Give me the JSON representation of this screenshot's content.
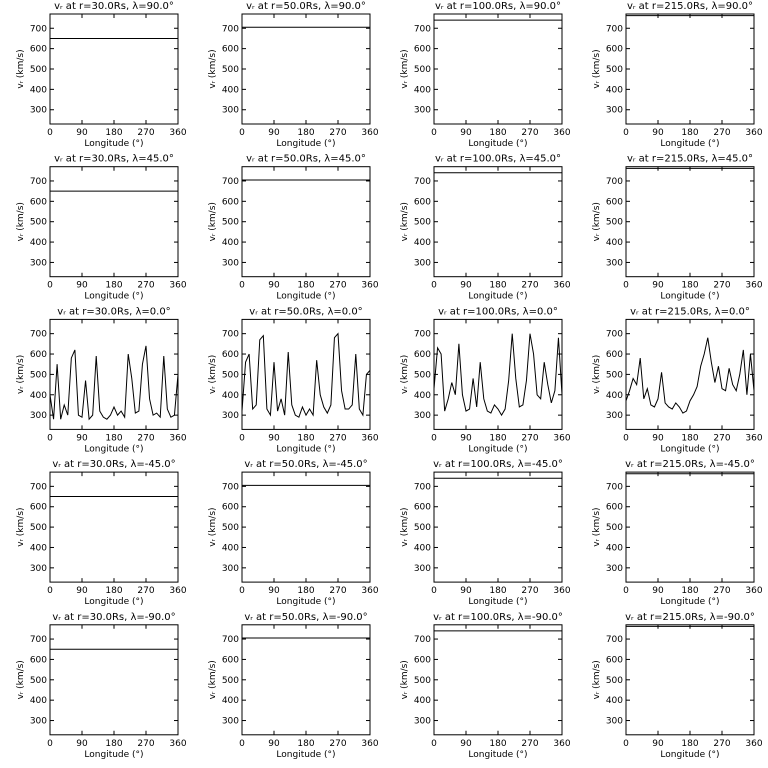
{
  "chart_data": [
    {
      "type": "line",
      "title": "vᵣ at r=30.0Rs, λ=90.0°",
      "xlabel": "Longitude (°)",
      "ylabel": "vᵣ (km/s)",
      "xlim": [
        0,
        360
      ],
      "xticks": [
        0,
        90,
        180,
        270,
        360
      ],
      "ylim": [
        230,
        770
      ],
      "yticks": [
        300,
        400,
        500,
        600,
        700
      ],
      "color": "#000000",
      "x": [
        0,
        360
      ],
      "values": [
        650,
        650
      ]
    },
    {
      "type": "line",
      "title": "vᵣ at r=50.0Rs, λ=90.0°",
      "xlabel": "Longitude (°)",
      "ylabel": "vᵣ (km/s)",
      "xlim": [
        0,
        360
      ],
      "xticks": [
        0,
        90,
        180,
        270,
        360
      ],
      "ylim": [
        230,
        770
      ],
      "yticks": [
        300,
        400,
        500,
        600,
        700
      ],
      "color": "#000000",
      "x": [
        0,
        360
      ],
      "values": [
        705,
        705
      ]
    },
    {
      "type": "line",
      "title": "vᵣ at r=100.0Rs, λ=90.0°",
      "xlabel": "Longitude (°)",
      "ylabel": "vᵣ (km/s)",
      "xlim": [
        0,
        360
      ],
      "xticks": [
        0,
        90,
        180,
        270,
        360
      ],
      "ylim": [
        230,
        770
      ],
      "yticks": [
        300,
        400,
        500,
        600,
        700
      ],
      "color": "#000000",
      "x": [
        0,
        360
      ],
      "values": [
        740,
        740
      ]
    },
    {
      "type": "line",
      "title": "vᵣ at r=215.0Rs, λ=90.0°",
      "xlabel": "Longitude (°)",
      "ylabel": "vᵣ (km/s)",
      "xlim": [
        0,
        360
      ],
      "xticks": [
        0,
        90,
        180,
        270,
        360
      ],
      "ylim": [
        230,
        770
      ],
      "yticks": [
        300,
        400,
        500,
        600,
        700
      ],
      "color": "#000000",
      "x": [
        0,
        360
      ],
      "values": [
        762,
        762
      ]
    },
    {
      "type": "line",
      "title": "vᵣ at r=30.0Rs, λ=45.0°",
      "xlabel": "Longitude (°)",
      "ylabel": "vᵣ (km/s)",
      "xlim": [
        0,
        360
      ],
      "xticks": [
        0,
        90,
        180,
        270,
        360
      ],
      "ylim": [
        230,
        770
      ],
      "yticks": [
        300,
        400,
        500,
        600,
        700
      ],
      "color": "#000000",
      "x": [
        0,
        360
      ],
      "values": [
        650,
        650
      ]
    },
    {
      "type": "line",
      "title": "vᵣ at r=50.0Rs, λ=45.0°",
      "xlabel": "Longitude (°)",
      "ylabel": "vᵣ (km/s)",
      "xlim": [
        0,
        360
      ],
      "xticks": [
        0,
        90,
        180,
        270,
        360
      ],
      "ylim": [
        230,
        770
      ],
      "yticks": [
        300,
        400,
        500,
        600,
        700
      ],
      "color": "#000000",
      "x": [
        0,
        360
      ],
      "values": [
        705,
        705
      ]
    },
    {
      "type": "line",
      "title": "vᵣ at r=100.0Rs, λ=45.0°",
      "xlabel": "Longitude (°)",
      "ylabel": "vᵣ (km/s)",
      "xlim": [
        0,
        360
      ],
      "xticks": [
        0,
        90,
        180,
        270,
        360
      ],
      "ylim": [
        230,
        770
      ],
      "yticks": [
        300,
        400,
        500,
        600,
        700
      ],
      "color": "#000000",
      "x": [
        0,
        360
      ],
      "values": [
        740,
        740
      ]
    },
    {
      "type": "line",
      "title": "vᵣ at r=215.0Rs, λ=45.0°",
      "xlabel": "Longitude (°)",
      "ylabel": "vᵣ (km/s)",
      "xlim": [
        0,
        360
      ],
      "xticks": [
        0,
        90,
        180,
        270,
        360
      ],
      "ylim": [
        230,
        770
      ],
      "yticks": [
        300,
        400,
        500,
        600,
        700
      ],
      "color": "#000000",
      "x": [
        0,
        360
      ],
      "values": [
        762,
        762
      ]
    },
    {
      "type": "line",
      "title": "vᵣ at r=30.0Rs, λ=0.0°",
      "xlabel": "Longitude (°)",
      "ylabel": "vᵣ (km/s)",
      "xlim": [
        0,
        360
      ],
      "xticks": [
        0,
        90,
        180,
        270,
        360
      ],
      "ylim": [
        230,
        770
      ],
      "yticks": [
        300,
        400,
        500,
        600,
        700
      ],
      "color": "#000000",
      "x": [
        0,
        10,
        20,
        30,
        40,
        50,
        60,
        70,
        80,
        90,
        100,
        110,
        120,
        130,
        140,
        150,
        160,
        170,
        180,
        190,
        200,
        210,
        220,
        230,
        240,
        250,
        260,
        270,
        280,
        290,
        300,
        310,
        320,
        330,
        340,
        350,
        360
      ],
      "values": [
        400,
        280,
        550,
        280,
        350,
        300,
        580,
        620,
        300,
        290,
        470,
        280,
        300,
        590,
        320,
        290,
        280,
        300,
        340,
        300,
        320,
        290,
        600,
        480,
        310,
        320,
        550,
        640,
        380,
        300,
        310,
        290,
        590,
        330,
        290,
        300,
        500
      ]
    },
    {
      "type": "line",
      "title": "vᵣ at r=50.0Rs, λ=0.0°",
      "xlabel": "Longitude (°)",
      "ylabel": "vᵣ (km/s)",
      "xlim": [
        0,
        360
      ],
      "xticks": [
        0,
        90,
        180,
        270,
        360
      ],
      "ylim": [
        230,
        770
      ],
      "yticks": [
        300,
        400,
        500,
        600,
        700
      ],
      "color": "#000000",
      "x": [
        0,
        10,
        20,
        30,
        40,
        50,
        60,
        70,
        80,
        90,
        100,
        110,
        120,
        130,
        140,
        150,
        160,
        170,
        180,
        190,
        200,
        210,
        220,
        230,
        240,
        250,
        260,
        270,
        280,
        290,
        300,
        310,
        320,
        330,
        340,
        350,
        360
      ],
      "values": [
        320,
        560,
        600,
        330,
        350,
        670,
        690,
        330,
        300,
        560,
        320,
        380,
        300,
        610,
        350,
        300,
        290,
        340,
        300,
        330,
        300,
        570,
        400,
        340,
        310,
        350,
        680,
        700,
        420,
        330,
        330,
        350,
        600,
        330,
        300,
        500,
        520
      ]
    },
    {
      "type": "line",
      "title": "vᵣ at r=100.0Rs, λ=0.0°",
      "xlabel": "Longitude (°)",
      "ylabel": "vᵣ (km/s)",
      "xlim": [
        0,
        360
      ],
      "xticks": [
        0,
        90,
        180,
        270,
        360
      ],
      "ylim": [
        230,
        770
      ],
      "yticks": [
        300,
        400,
        500,
        600,
        700
      ],
      "color": "#000000",
      "x": [
        0,
        10,
        20,
        30,
        40,
        50,
        60,
        70,
        80,
        90,
        100,
        110,
        120,
        130,
        140,
        150,
        160,
        170,
        180,
        190,
        200,
        210,
        220,
        230,
        240,
        250,
        260,
        270,
        280,
        290,
        300,
        310,
        320,
        330,
        340,
        350,
        360
      ],
      "values": [
        430,
        630,
        600,
        320,
        380,
        460,
        400,
        650,
        400,
        320,
        330,
        480,
        340,
        560,
        380,
        320,
        310,
        350,
        330,
        300,
        330,
        470,
        700,
        480,
        340,
        350,
        470,
        700,
        600,
        400,
        380,
        560,
        450,
        360,
        420,
        680,
        400
      ]
    },
    {
      "type": "line",
      "title": "vᵣ at r=215.0Rs, λ=0.0°",
      "xlabel": "Longitude (°)",
      "ylabel": "vᵣ (km/s)",
      "xlim": [
        0,
        360
      ],
      "xticks": [
        0,
        90,
        180,
        270,
        360
      ],
      "ylim": [
        230,
        770
      ],
      "yticks": [
        300,
        400,
        500,
        600,
        700
      ],
      "color": "#000000",
      "x": [
        0,
        10,
        20,
        30,
        40,
        50,
        60,
        70,
        80,
        90,
        100,
        110,
        120,
        130,
        140,
        150,
        160,
        170,
        180,
        190,
        200,
        210,
        220,
        230,
        240,
        250,
        260,
        270,
        280,
        290,
        300,
        310,
        320,
        330,
        340,
        350,
        360
      ],
      "values": [
        370,
        420,
        480,
        450,
        580,
        380,
        430,
        350,
        340,
        380,
        510,
        360,
        340,
        330,
        360,
        340,
        310,
        320,
        370,
        400,
        440,
        540,
        600,
        680,
        560,
        460,
        540,
        430,
        420,
        530,
        450,
        420,
        500,
        620,
        400,
        600,
        420
      ]
    },
    {
      "type": "line",
      "title": "vᵣ at r=30.0Rs, λ=-45.0°",
      "xlabel": "Longitude (°)",
      "ylabel": "vᵣ (km/s)",
      "xlim": [
        0,
        360
      ],
      "xticks": [
        0,
        90,
        180,
        270,
        360
      ],
      "ylim": [
        230,
        770
      ],
      "yticks": [
        300,
        400,
        500,
        600,
        700
      ],
      "color": "#000000",
      "x": [
        0,
        360
      ],
      "values": [
        650,
        650
      ]
    },
    {
      "type": "line",
      "title": "vᵣ at r=50.0Rs, λ=-45.0°",
      "xlabel": "Longitude (°)",
      "ylabel": "vᵣ (km/s)",
      "xlim": [
        0,
        360
      ],
      "xticks": [
        0,
        90,
        180,
        270,
        360
      ],
      "ylim": [
        230,
        770
      ],
      "yticks": [
        300,
        400,
        500,
        600,
        700
      ],
      "color": "#000000",
      "x": [
        0,
        360
      ],
      "values": [
        705,
        705
      ]
    },
    {
      "type": "line",
      "title": "vᵣ at r=100.0Rs, λ=-45.0°",
      "xlabel": "Longitude (°)",
      "ylabel": "vᵣ (km/s)",
      "xlim": [
        0,
        360
      ],
      "xticks": [
        0,
        90,
        180,
        270,
        360
      ],
      "ylim": [
        230,
        770
      ],
      "yticks": [
        300,
        400,
        500,
        600,
        700
      ],
      "color": "#000000",
      "x": [
        0,
        360
      ],
      "values": [
        740,
        740
      ]
    },
    {
      "type": "line",
      "title": "vᵣ at r=215.0Rs, λ=-45.0°",
      "xlabel": "Longitude (°)",
      "ylabel": "vᵣ (km/s)",
      "xlim": [
        0,
        360
      ],
      "xticks": [
        0,
        90,
        180,
        270,
        360
      ],
      "ylim": [
        230,
        770
      ],
      "yticks": [
        300,
        400,
        500,
        600,
        700
      ],
      "color": "#000000",
      "x": [
        0,
        360
      ],
      "values": [
        762,
        762
      ]
    },
    {
      "type": "line",
      "title": "vᵣ at r=30.0Rs, λ=-90.0°",
      "xlabel": "Longitude (°)",
      "ylabel": "vᵣ (km/s)",
      "xlim": [
        0,
        360
      ],
      "xticks": [
        0,
        90,
        180,
        270,
        360
      ],
      "ylim": [
        230,
        770
      ],
      "yticks": [
        300,
        400,
        500,
        600,
        700
      ],
      "color": "#000000",
      "x": [
        0,
        360
      ],
      "values": [
        650,
        650
      ]
    },
    {
      "type": "line",
      "title": "vᵣ at r=50.0Rs, λ=-90.0°",
      "xlabel": "Longitude (°)",
      "ylabel": "vᵣ (km/s)",
      "xlim": [
        0,
        360
      ],
      "xticks": [
        0,
        90,
        180,
        270,
        360
      ],
      "ylim": [
        230,
        770
      ],
      "yticks": [
        300,
        400,
        500,
        600,
        700
      ],
      "color": "#000000",
      "x": [
        0,
        360
      ],
      "values": [
        705,
        705
      ]
    },
    {
      "type": "line",
      "title": "vᵣ at r=100.0Rs, λ=-90.0°",
      "xlabel": "Longitude (°)",
      "ylabel": "vᵣ (km/s)",
      "xlim": [
        0,
        360
      ],
      "xticks": [
        0,
        90,
        180,
        270,
        360
      ],
      "ylim": [
        230,
        770
      ],
      "yticks": [
        300,
        400,
        500,
        600,
        700
      ],
      "color": "#000000",
      "x": [
        0,
        360
      ],
      "values": [
        740,
        740
      ]
    },
    {
      "type": "line",
      "title": "vᵣ at r=215.0Rs, λ=-90.0°",
      "xlabel": "Longitude (°)",
      "ylabel": "vᵣ (km/s)",
      "xlim": [
        0,
        360
      ],
      "xticks": [
        0,
        90,
        180,
        270,
        360
      ],
      "ylim": [
        230,
        770
      ],
      "yticks": [
        300,
        400,
        500,
        600,
        700
      ],
      "color": "#000000",
      "x": [
        0,
        360
      ],
      "values": [
        762,
        762
      ]
    }
  ]
}
